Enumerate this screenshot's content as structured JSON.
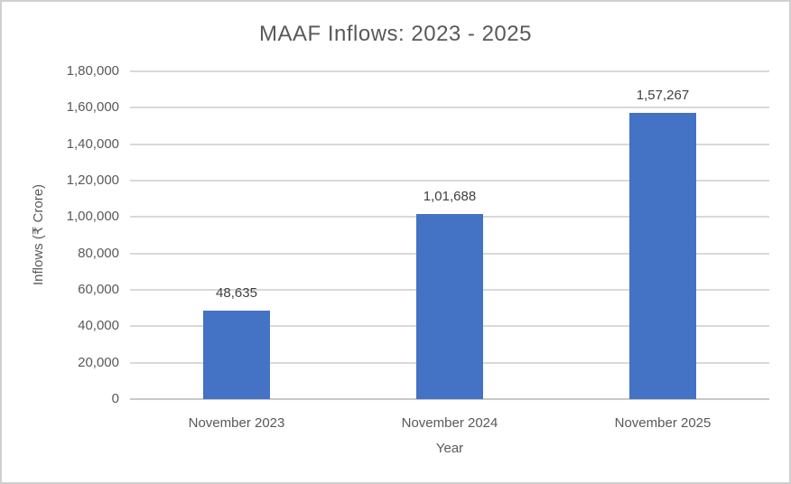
{
  "chart_data": {
    "type": "bar",
    "title": "MAAF Inflows: 2023 - 2025",
    "xlabel": "Year",
    "ylabel": "Inflows (₹ Crore)",
    "categories": [
      "November 2023",
      "November 2024",
      "November 2025"
    ],
    "values": [
      48635,
      101688,
      157267
    ],
    "value_labels": [
      "48,635",
      "1,01,688",
      "1,57,267"
    ],
    "ylim": [
      0,
      180000
    ],
    "ytick_step": 20000,
    "ytick_labels": [
      "0",
      "20,000",
      "40,000",
      "60,000",
      "80,000",
      "1,00,000",
      "1,20,000",
      "1,40,000",
      "1,60,000",
      "1,80,000"
    ],
    "grid": true,
    "legend": "none",
    "colors": {
      "bar": "#4472c4",
      "gridline": "#d9d9d9",
      "axis_line": "#c9c9c9",
      "title_text": "#595959",
      "axis_text": "#595959",
      "data_label_text": "#404040",
      "chart_border": "#d0d0d0",
      "background": "#ffffff"
    }
  }
}
